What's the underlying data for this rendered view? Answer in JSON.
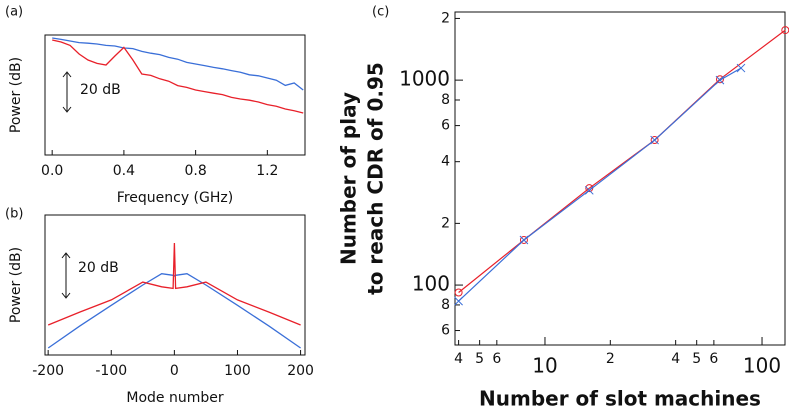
{
  "chart_data": [
    {
      "type": "line",
      "panel_label": "(a)",
      "xlabel": "Frequency (GHz)",
      "ylabel": "Power (dB)",
      "annotation": "20 dB",
      "xlim": [
        -0.04,
        1.41
      ],
      "xticks": [
        {
          "value": 0,
          "label": "0.0"
        },
        0.4,
        0.8,
        1.2
      ],
      "ylim": [
        0,
        60
      ],
      "x": [
        0,
        0.05,
        0.1,
        0.15,
        0.2,
        0.25,
        0.3,
        0.35,
        0.4,
        0.45,
        0.5,
        0.55,
        0.6,
        0.65,
        0.7,
        0.75,
        0.8,
        0.85,
        0.9,
        0.95,
        1.0,
        1.05,
        1.1,
        1.15,
        1.2,
        1.25,
        1.3,
        1.35,
        1.4
      ],
      "series": [
        {
          "color": "#3a6fd8",
          "values": [
            58.5,
            57.8,
            57,
            56.2,
            55.9,
            55.5,
            54.8,
            54.5,
            53.5,
            53.2,
            51.8,
            50.9,
            50.2,
            48.8,
            47.9,
            46.3,
            45.5,
            44.7,
            43.8,
            43.1,
            42.2,
            41.4,
            40.1,
            39.6,
            38.5,
            37.4,
            34.8,
            36.0,
            32.5
          ]
        },
        {
          "color": "#e8202a",
          "values": [
            57.5,
            56.5,
            54.8,
            50.5,
            47.5,
            45.8,
            45.0,
            49.5,
            53.8,
            47.5,
            40.5,
            39.8,
            38.1,
            36.9,
            34.7,
            33.8,
            32.5,
            31.7,
            30.9,
            30.2,
            28.8,
            28.0,
            27.4,
            26.5,
            25.2,
            24.4,
            23.0,
            22.1,
            21.0
          ]
        }
      ]
    },
    {
      "type": "line",
      "panel_label": "(b)",
      "xlabel": "Mode number",
      "ylabel": "Power (dB)",
      "annotation": "20 dB",
      "xlim": [
        -205,
        207
      ],
      "xticks": [
        -200,
        -100,
        0,
        100,
        200
      ],
      "ylim": [
        0,
        62
      ],
      "x": [
        -200,
        -150,
        -100,
        -50,
        -20,
        -2,
        0,
        2,
        20,
        50,
        100,
        150,
        200
      ],
      "series": [
        {
          "color": "#3a6fd8",
          "values": [
            3.1,
            12.8,
            22,
            31,
            36,
            35.3,
            35,
            35.3,
            36,
            31,
            22,
            12.8,
            3.1
          ]
        },
        {
          "color": "#e8202a",
          "values": [
            13.3,
            19,
            24.4,
            32.3,
            30.2,
            29.5,
            49.6,
            29.5,
            30.2,
            32.3,
            24.4,
            19,
            13.3
          ]
        }
      ]
    },
    {
      "type": "scatter",
      "panel_label": "(c)",
      "xlabel": "Number of slot machines",
      "ylabel": [
        "Number of play",
        "to reach CDR of 0.95"
      ],
      "log_x": true,
      "log_y": true,
      "xlim": [
        3.85,
        127.6
      ],
      "ylim": [
        51,
        2150
      ],
      "xticks": [
        4,
        5,
        6,
        10,
        {
          "value": 20,
          "label": "2"
        },
        {
          "value": 40,
          "label": "4"
        },
        {
          "value": 50,
          "label": "5"
        },
        {
          "value": 60,
          "label": "6"
        },
        100
      ],
      "yticks": [
        {
          "value": 60,
          "label": "6"
        },
        {
          "value": 80,
          "label": "8"
        },
        100,
        {
          "value": 200,
          "label": "2"
        },
        {
          "value": 400,
          "label": "4"
        },
        {
          "value": 600,
          "label": "6"
        },
        {
          "value": 800,
          "label": "8"
        },
        1000,
        {
          "value": 2000,
          "label": "2"
        }
      ],
      "series": [
        {
          "color": "#e8202a",
          "marker": "o",
          "x": [
            4,
            8,
            16,
            32,
            64,
            128
          ],
          "values": [
            92,
            166,
            297,
            510,
            1010,
            1755
          ]
        },
        {
          "color": "#3a6fd8",
          "marker": "x",
          "x": [
            4,
            8,
            16,
            32,
            64,
            80
          ],
          "values": [
            83.5,
            166,
            290,
            510,
            1000,
            1145
          ]
        }
      ]
    }
  ]
}
